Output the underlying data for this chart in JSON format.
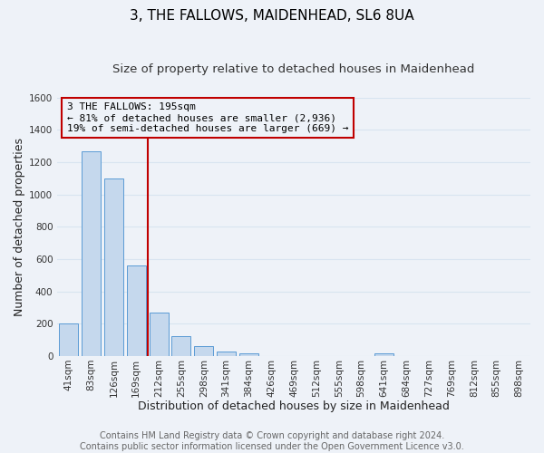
{
  "title": "3, THE FALLOWS, MAIDENHEAD, SL6 8UA",
  "subtitle": "Size of property relative to detached houses in Maidenhead",
  "xlabel": "Distribution of detached houses by size in Maidenhead",
  "ylabel": "Number of detached properties",
  "footer_lines": [
    "Contains HM Land Registry data © Crown copyright and database right 2024.",
    "Contains public sector information licensed under the Open Government Licence v3.0."
  ],
  "bin_labels": [
    "41sqm",
    "83sqm",
    "126sqm",
    "169sqm",
    "212sqm",
    "255sqm",
    "298sqm",
    "341sqm",
    "384sqm",
    "426sqm",
    "469sqm",
    "512sqm",
    "555sqm",
    "598sqm",
    "641sqm",
    "684sqm",
    "727sqm",
    "769sqm",
    "812sqm",
    "855sqm",
    "898sqm"
  ],
  "bar_values": [
    200,
    1270,
    1100,
    560,
    270,
    125,
    60,
    30,
    17,
    0,
    0,
    0,
    0,
    0,
    17,
    0,
    0,
    0,
    0,
    0,
    0
  ],
  "bar_color": "#c5d8ed",
  "bar_edge_color": "#5b9bd5",
  "ylim": [
    0,
    1600
  ],
  "yticks": [
    0,
    200,
    400,
    600,
    800,
    1000,
    1200,
    1400,
    1600
  ],
  "vline_color": "#c00000",
  "annotation_title": "3 THE FALLOWS: 195sqm",
  "annotation_line1": "← 81% of detached houses are smaller (2,936)",
  "annotation_line2": "19% of semi-detached houses are larger (669) →",
  "annotation_box_color": "#c00000",
  "background_color": "#eef2f8",
  "grid_color": "#d8e4f0",
  "title_fontsize": 11,
  "subtitle_fontsize": 9.5,
  "axis_label_fontsize": 9,
  "tick_fontsize": 7.5,
  "annot_fontsize": 8,
  "footer_fontsize": 7
}
